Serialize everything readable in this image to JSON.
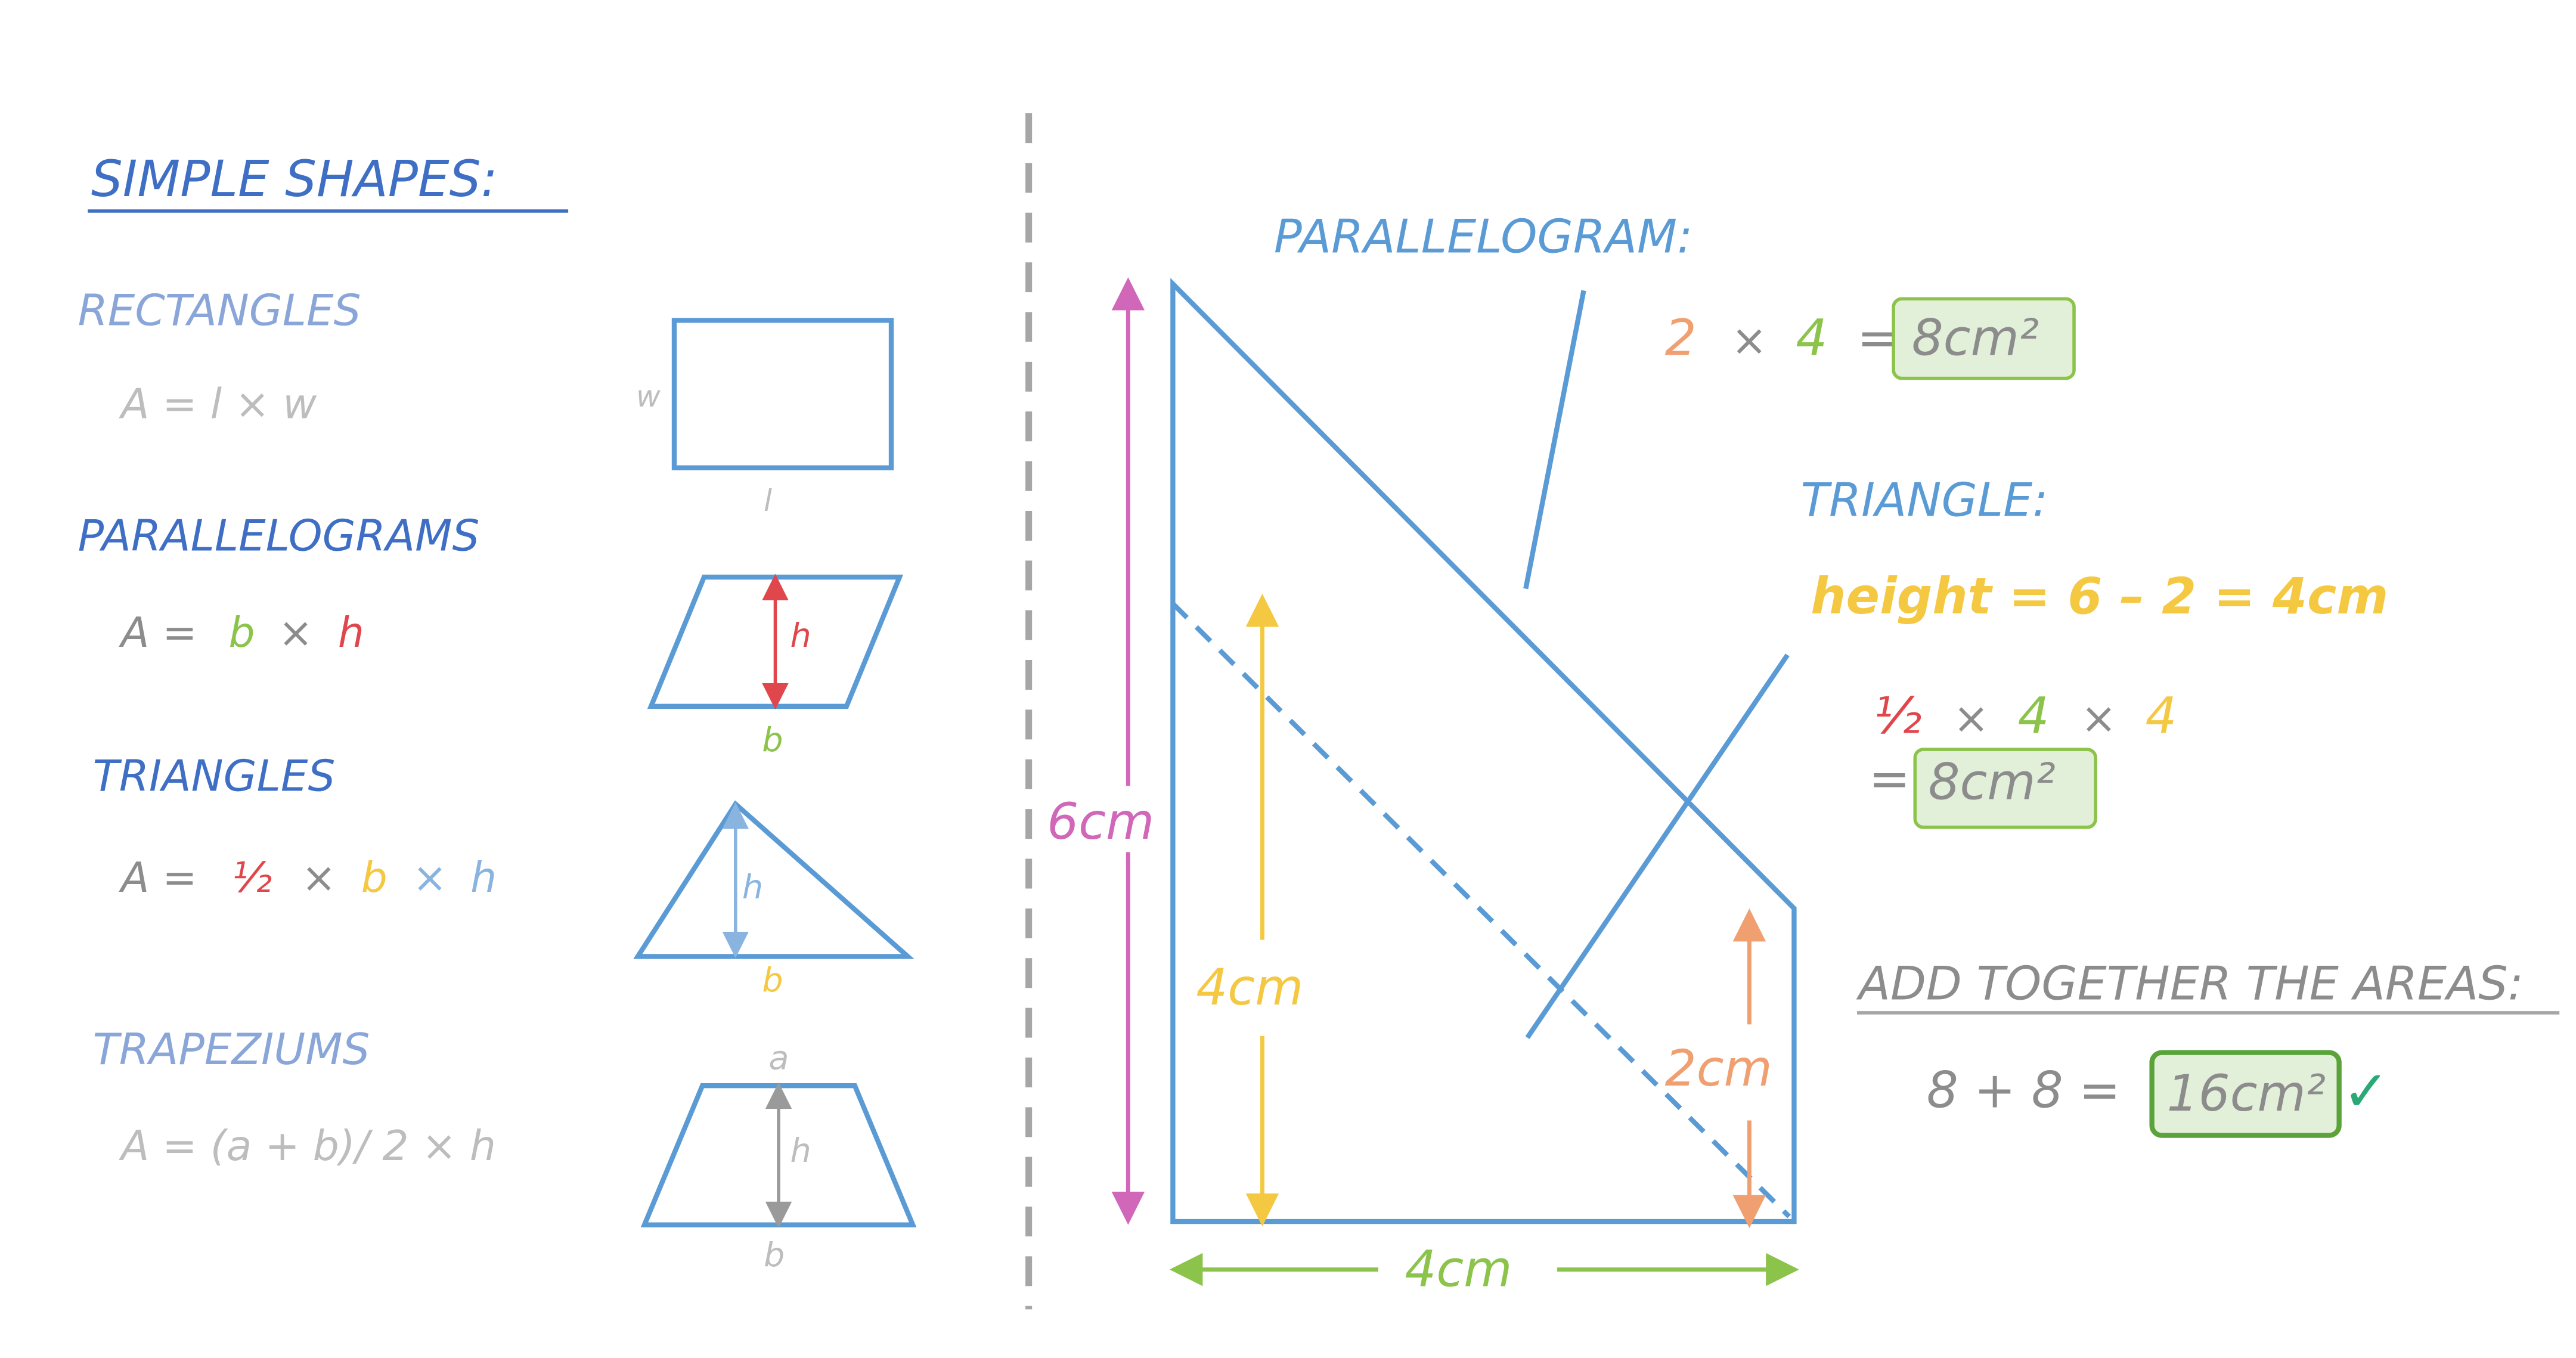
{
  "left_panel": {
    "heading": "SIMPLE SHAPES:",
    "rectangles": {
      "title": "RECTANGLES",
      "formula": "A = l × w",
      "label_w": "w",
      "label_l": "l"
    },
    "parallelograms": {
      "title": "PARALLELOGRAMS",
      "formula_a": "A =",
      "formula_b": "b",
      "formula_x": "×",
      "formula_h": "h",
      "label_h": "h",
      "label_b": "b"
    },
    "triangles": {
      "title": "TRIANGLES",
      "formula_a": "A =",
      "formula_half": "½",
      "formula_x1": "×",
      "formula_b": "b",
      "formula_x2": "×",
      "formula_h": "h",
      "label_h": "h",
      "label_b": "b"
    },
    "trapeziums": {
      "title": "TRAPEZIUMS",
      "formula": "A = (a + b)/ 2 × h",
      "label_a": "a",
      "label_h": "h",
      "label_b": "b"
    }
  },
  "right_panel": {
    "parallelogram": {
      "title": "PARALLELOGRAM:",
      "calc_2": "2",
      "calc_x": "×",
      "calc_4": "4",
      "calc_eq": "=",
      "result": "8cm²"
    },
    "triangle": {
      "title": "TRIANGLE:",
      "height_line": "height = 6 – 2 = 4cm",
      "calc_half": "½",
      "calc_x1": "×",
      "calc_4a": "4",
      "calc_x2": "×",
      "calc_4b": "4",
      "calc_eq": "=",
      "result": "8cm²"
    },
    "total": {
      "title": "ADD TOGETHER THE AREAS:",
      "calc": "8 + 8 =",
      "result": "16cm²",
      "check": "✓"
    },
    "dimensions": {
      "height_6": "6cm",
      "height_4": "4cm",
      "height_2": "2cm",
      "width_4": "4cm"
    }
  },
  "colors": {
    "blue_dark": "#3f6fc4",
    "blue_light": "#8aa6d8",
    "shape_blue": "#5b9bd5",
    "gray": "#8c8c8c",
    "gray_light": "#bdbdbd",
    "red": "#e0474c",
    "green": "#8cc34b",
    "yellow": "#f5c842",
    "orange": "#f0a070",
    "magenta": "#d067b8",
    "box_fill": "#e2efd9",
    "box_stroke": "#8cc34b",
    "box_stroke_dark": "#5aa33a",
    "check": "#2aa876"
  }
}
